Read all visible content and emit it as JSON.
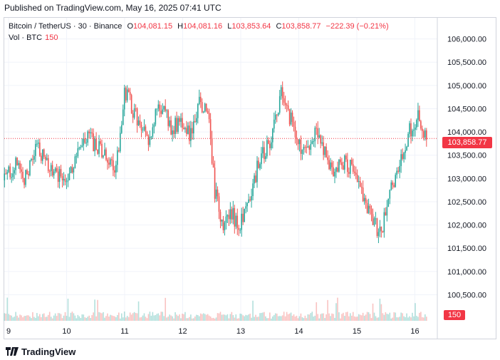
{
  "header": {
    "published": "Published on TradingView.com, May 16, 2025 07:41 UTC"
  },
  "legend": {
    "symbol": "Bitcoin / TetherUS · 30 · Binance",
    "o_label": "O",
    "o_value": "104,081.15",
    "h_label": "H",
    "h_value": "104,081.16",
    "l_label": "L",
    "l_value": "103,853.64",
    "c_label": "C",
    "c_value": "103,858.77",
    "change": "−222.39 (−0.21%)",
    "vol_label": "Vol · BTC",
    "vol_value": "150"
  },
  "price_tag": "103,858.77",
  "volume_tag": "150",
  "footer": {
    "brand": "TradingView"
  },
  "colors": {
    "up": "#26a69a",
    "down": "#ef5350",
    "tag": "#f23645"
  },
  "chart_data": {
    "type": "candlestick",
    "y_axis": {
      "ticks": [
        100500,
        101000,
        101500,
        102000,
        102500,
        103000,
        103500,
        104000,
        104500,
        105000,
        105500,
        106000
      ],
      "tick_labels": [
        "100,500.00",
        "101,000.00",
        "101,500.00",
        "102,000.00",
        "102,500.00",
        "103,000.00",
        "103,500.00",
        "104,000.00",
        "104,500.00",
        "105,000.00",
        "105,500.00",
        "106,000.00"
      ],
      "range": [
        100400,
        106300
      ]
    },
    "x_axis": {
      "labels": [
        "9",
        "10",
        "11",
        "12",
        "13",
        "14",
        "15",
        "16"
      ]
    },
    "last_price": 103858.77,
    "series": [
      {
        "name": "price_path",
        "values": [
          [
            8.9,
            102900
          ],
          [
            9.1,
            103300
          ],
          [
            9.3,
            103000
          ],
          [
            9.5,
            103700
          ],
          [
            9.7,
            103200
          ],
          [
            9.9,
            103000
          ],
          [
            10.0,
            103100
          ],
          [
            10.2,
            103500
          ],
          [
            10.35,
            103900
          ],
          [
            10.5,
            103700
          ],
          [
            10.7,
            103400
          ],
          [
            10.85,
            103200
          ],
          [
            11.0,
            104900
          ],
          [
            11.2,
            104300
          ],
          [
            11.4,
            103800
          ],
          [
            11.6,
            104600
          ],
          [
            11.8,
            104100
          ],
          [
            12.0,
            104200
          ],
          [
            12.15,
            103900
          ],
          [
            12.3,
            104700
          ],
          [
            12.45,
            104300
          ],
          [
            12.55,
            102700
          ],
          [
            12.7,
            102000
          ],
          [
            12.85,
            102200
          ],
          [
            13.0,
            102000
          ],
          [
            13.15,
            102600
          ],
          [
            13.3,
            103300
          ],
          [
            13.5,
            103800
          ],
          [
            13.7,
            104800
          ],
          [
            13.85,
            104300
          ],
          [
            14.0,
            103700
          ],
          [
            14.15,
            103500
          ],
          [
            14.3,
            104000
          ],
          [
            14.45,
            103500
          ],
          [
            14.6,
            103100
          ],
          [
            14.8,
            103400
          ],
          [
            15.0,
            103000
          ],
          [
            15.1,
            102700
          ],
          [
            15.25,
            102200
          ],
          [
            15.4,
            101800
          ],
          [
            15.5,
            102300
          ],
          [
            15.65,
            103000
          ],
          [
            15.75,
            103400
          ],
          [
            15.9,
            104000
          ],
          [
            16.05,
            104300
          ],
          [
            16.2,
            103860
          ]
        ]
      }
    ],
    "volume": {
      "unit": "BTC",
      "last": 150
    }
  }
}
